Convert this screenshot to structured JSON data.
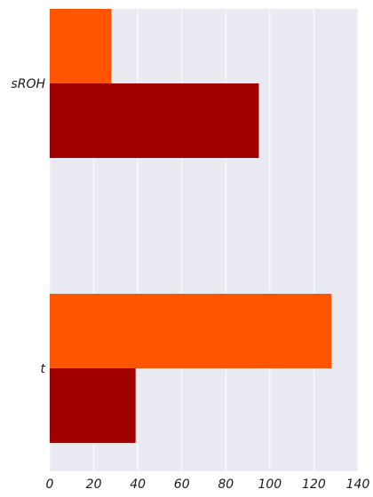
{
  "chart_data": {
    "type": "bar",
    "orientation": "horizontal",
    "categories": [
      "sROH",
      "t"
    ],
    "series": [
      {
        "values": [
          28,
          128
        ],
        "color": "#ff5500"
      },
      {
        "values": [
          95,
          39
        ],
        "color": "#a00000"
      }
    ],
    "xlim": [
      0,
      140
    ],
    "x_ticks": [
      0,
      20,
      40,
      60,
      80,
      100,
      120,
      140
    ],
    "grid": true,
    "background_color": "#e9eaf2",
    "grid_color": "#ffffff",
    "title": "",
    "xlabel": "",
    "ylabel": ""
  }
}
